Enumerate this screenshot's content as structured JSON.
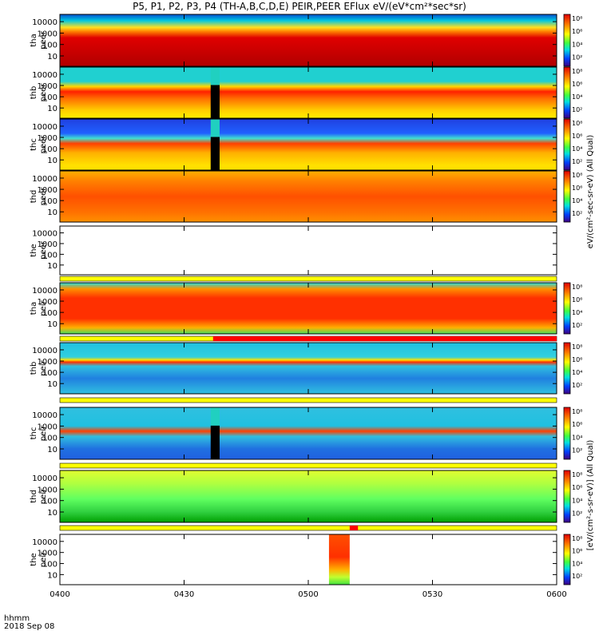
{
  "title": "P5, P1, P2, P3, P4 (TH-A,B,C,D,E) PEIR,PEER EFlux eV/(eV*cm²*sec*sr)",
  "x_axis": {
    "tick_labels": [
      "0400",
      "0430",
      "0500",
      "0530",
      "0600"
    ],
    "label_line1": "hhmm",
    "label_line2": "2018 Sep 08"
  },
  "y_tick_labels": [
    "10000",
    "1000",
    "100",
    "10"
  ],
  "colorbar": {
    "ticks": [
      "10⁸",
      "10⁶",
      "10⁴",
      "10²"
    ],
    "label_upper": "eV/(cm²-sec-sr-eV) (All Qual)",
    "label_lower": "[eV/(cm²-s-sr-eV)] (All Qual)"
  },
  "chart_data": {
    "type": "heatmap",
    "x_range": [
      "0400",
      "0600"
    ],
    "y_scale": "log",
    "y_range_eV": [
      7,
      25000
    ],
    "color_scale": "log",
    "panels": [
      {
        "ylabel_line1": "tha",
        "ylabel_line2": "peer",
        "has_colorbar": true,
        "flag_bar": false,
        "data_gap": false
      },
      {
        "ylabel_line1": "thb",
        "ylabel_line2": "peer",
        "has_colorbar": true,
        "flag_bar": false,
        "data_gap": true,
        "gap_start": "0437",
        "gap_end": "0438"
      },
      {
        "ylabel_line1": "thc",
        "ylabel_line2": "peer",
        "has_colorbar": true,
        "flag_bar": false,
        "data_gap": true,
        "gap_start": "0437",
        "gap_end": "0438"
      },
      {
        "ylabel_line1": "thd",
        "ylabel_line2": "peer",
        "has_colorbar": true,
        "flag_bar": false,
        "data_gap": false
      },
      {
        "ylabel_line1": "the",
        "ylabel_line2": "peer",
        "has_colorbar": false,
        "flag_bar": true,
        "data_gap": false,
        "empty": true
      },
      {
        "ylabel_line1": "tha",
        "ylabel_line2": "peir",
        "has_colorbar": true,
        "flag_bar": true,
        "flag_red_start": "0437",
        "data_gap": false
      },
      {
        "ylabel_line1": "thb",
        "ylabel_line2": "peir",
        "has_colorbar": true,
        "flag_bar": true,
        "data_gap": false
      },
      {
        "ylabel_line1": "thc",
        "ylabel_line2": "peir",
        "has_colorbar": true,
        "flag_bar": true,
        "data_gap": true,
        "gap_start": "0437",
        "gap_end": "0438"
      },
      {
        "ylabel_line1": "thd",
        "ylabel_line2": "peir",
        "has_colorbar": true,
        "flag_bar": true,
        "flag_red_start": "0510",
        "flag_red_end": "0512",
        "data_gap": false
      },
      {
        "ylabel_line1": "the",
        "ylabel_line2": "peir",
        "has_colorbar": true,
        "flag_bar": false,
        "data_gap": false,
        "partial": true,
        "data_start": "0505",
        "data_end": "0510"
      }
    ]
  }
}
